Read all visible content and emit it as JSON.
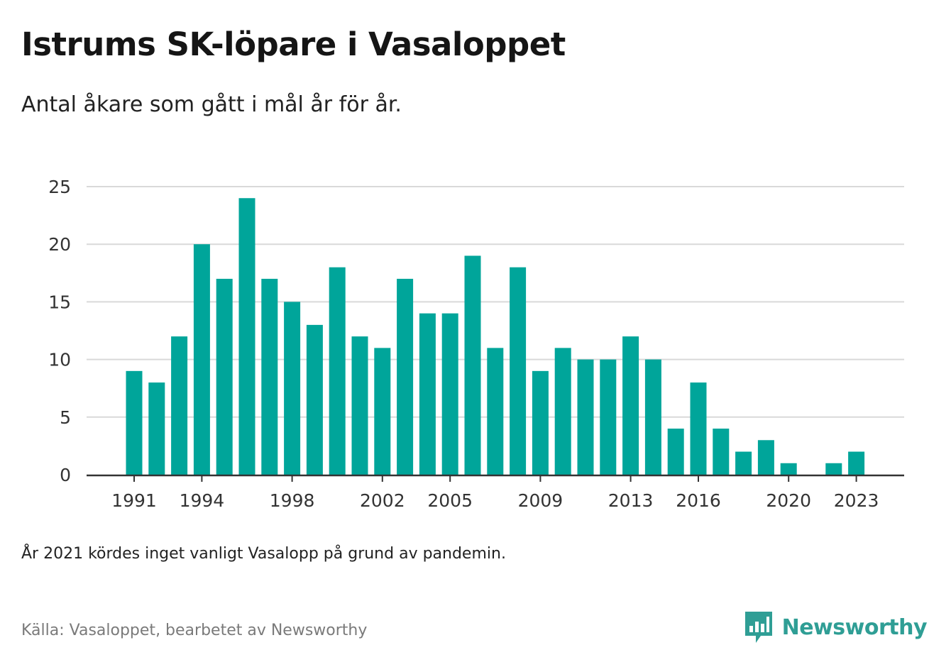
{
  "header": {
    "title": "Istrums SK-löpare i Vasaloppet",
    "subtitle": "Antal åkare som gått i mål år för år."
  },
  "footer": {
    "note": "År 2021 kördes inget vanligt Vasalopp på grund av pandemin.",
    "source": "Källa: Vasaloppet, bearbetet av Newsworthy",
    "brand": "Newsworthy",
    "brand_icon": "newsworthy-logo-icon"
  },
  "colors": {
    "bar": "#00a59a",
    "grid": "#d9d9d9",
    "axis": "#333333",
    "brand": "#2f9e95"
  },
  "chart_data": {
    "type": "bar",
    "categories": [
      "1991",
      "1992",
      "1993",
      "1994",
      "1995",
      "1996",
      "1997",
      "1998",
      "1999",
      "2000",
      "2001",
      "2002",
      "2003",
      "2004",
      "2005",
      "2006",
      "2007",
      "2008",
      "2009",
      "2010",
      "2011",
      "2012",
      "2013",
      "2014",
      "2015",
      "2016",
      "2017",
      "2018",
      "2019",
      "2020",
      "2021",
      "2022",
      "2023"
    ],
    "values": [
      9,
      8,
      12,
      20,
      17,
      24,
      17,
      15,
      13,
      18,
      12,
      11,
      17,
      14,
      14,
      19,
      11,
      18,
      9,
      11,
      10,
      10,
      12,
      10,
      4,
      8,
      4,
      2,
      3,
      1,
      0,
      1,
      2
    ],
    "x_tick_labels": [
      "1991",
      "1994",
      "1998",
      "2002",
      "2005",
      "2009",
      "2013",
      "2016",
      "2020",
      "2023"
    ],
    "y_ticks": [
      0,
      5,
      10,
      15,
      20,
      25
    ],
    "ylim": [
      0,
      25
    ],
    "grid": true,
    "legend": "none"
  }
}
